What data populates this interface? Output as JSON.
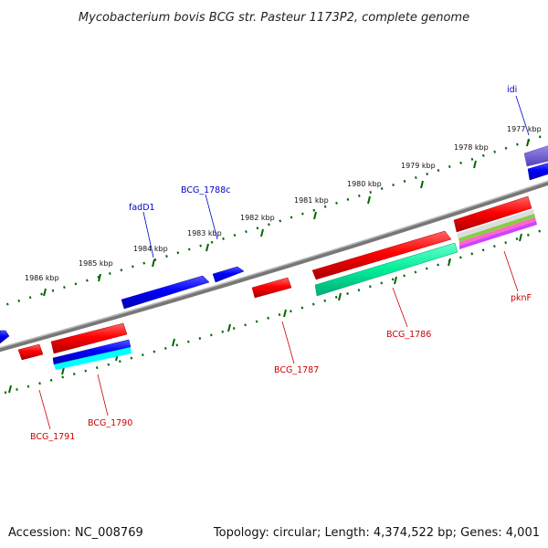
{
  "title": "Mycobacterium bovis BCG str. Pasteur 1173P2, complete genome",
  "footer": {
    "accession": "Accession: NC_008769",
    "summary": "Topology: circular; Length: 4,374,522 bp; Genes: 4,001"
  },
  "colors": {
    "forward_gene": "#ff0000",
    "reverse_gene": "#0000ff",
    "rna_gene": "#00ee99",
    "cyan_feature": "#00ffff",
    "purple_feature": "#7766dd",
    "backbone": "#808080",
    "ticks": "#006600",
    "label_red": "#cc0000",
    "label_blue": "#0000cc"
  },
  "kbp_ticks": [
    {
      "kbp": 1977,
      "label": "1977 kbp"
    },
    {
      "kbp": 1978,
      "label": "1978 kbp"
    },
    {
      "kbp": 1979,
      "label": "1979 kbp"
    },
    {
      "kbp": 1980,
      "label": "1980 kbp"
    },
    {
      "kbp": 1981,
      "label": "1981 kbp"
    },
    {
      "kbp": 1982,
      "label": "1982 kbp"
    },
    {
      "kbp": 1983,
      "label": "1983 kbp"
    },
    {
      "kbp": 1984,
      "label": "1984 kbp"
    },
    {
      "kbp": 1985,
      "label": "1985 kbp"
    },
    {
      "kbp": 1986,
      "label": "1986 kbp"
    }
  ],
  "gene_labels": {
    "idi": "idi",
    "BCG_1788c": "BCG_1788c",
    "fadD1": "fadD1",
    "pknF": "pknF",
    "BCG_1786": "BCG_1786",
    "BCG_1787": "BCG_1787",
    "BCG_1790": "BCG_1790",
    "BCG_1791": "BCG_1791"
  }
}
